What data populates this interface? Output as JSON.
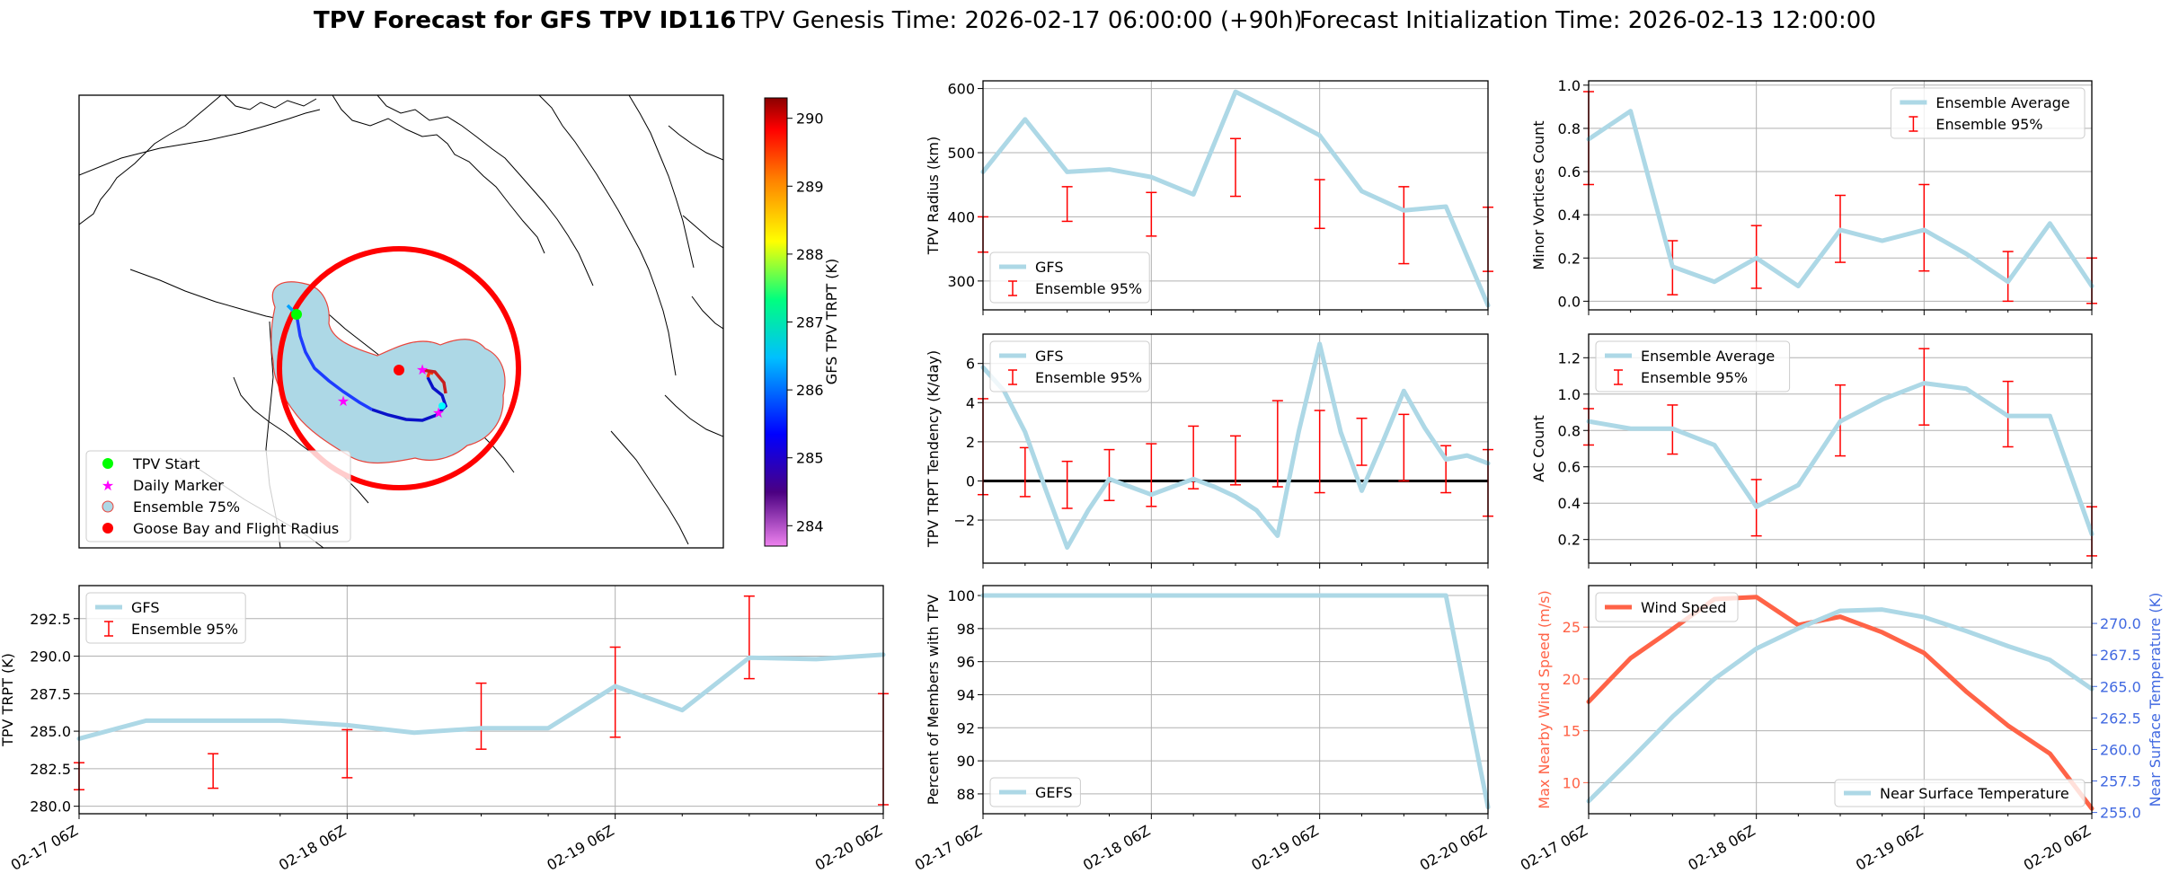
{
  "header": {
    "title_bold": "TPV Forecast for GFS TPV ID116",
    "genesis": "TPV Genesis Time: 2026-02-17 06:00:00 (+90h)",
    "init": "Forecast Initialization Time: 2026-02-13 12:00:00"
  },
  "colors": {
    "series": "#add8e6",
    "err": "#ff0000",
    "wind": "#ff6347",
    "temp": "#4169e1"
  },
  "time_ticks": [
    "02-17 06Z",
    "02-18 06Z",
    "02-19 06Z",
    "02-20 06Z"
  ],
  "map": {
    "legend": [
      {
        "label": "TPV Start",
        "symbol": "green-dot"
      },
      {
        "label": "Daily Marker",
        "symbol": "magenta-star"
      },
      {
        "label": "Ensemble 75%",
        "symbol": "lightblue-circle"
      },
      {
        "label": "Goose Bay and Flight Radius",
        "symbol": "red-dot"
      }
    ],
    "colorbar": {
      "label": "GFS TPV TRPT (K)",
      "ticks": [
        "284",
        "285",
        "286",
        "287",
        "288",
        "289",
        "290"
      ],
      "range": [
        283.7,
        290.3
      ]
    }
  },
  "chart_data": [
    {
      "id": "radius",
      "type": "line",
      "title": "",
      "xlabel": "",
      "ylabel": "TPV Radius (km)",
      "ylim": [
        255,
        612
      ],
      "yticks": [
        300,
        400,
        500,
        600
      ],
      "ytick_labels": [
        "300",
        "400",
        "500",
        "600"
      ],
      "legend": [
        "GFS",
        "Ensemble 95%"
      ],
      "legend_loc": "lower-left",
      "x": [
        0,
        1,
        2,
        3,
        4,
        5,
        6,
        7,
        8,
        9,
        10,
        11,
        12
      ],
      "series": [
        {
          "name": "GFS",
          "values": [
            470,
            552,
            470,
            474,
            462,
            435,
            595,
            562,
            527,
            440,
            410,
            416,
            262
          ]
        }
      ],
      "errorbars": [
        {
          "x": 0,
          "lo": 345,
          "hi": 400
        },
        {
          "x": 2,
          "lo": 393,
          "hi": 447
        },
        {
          "x": 4,
          "lo": 370,
          "hi": 438
        },
        {
          "x": 6,
          "lo": 432,
          "hi": 522
        },
        {
          "x": 8,
          "lo": 382,
          "hi": 458
        },
        {
          "x": 10,
          "lo": 327,
          "hi": 447
        },
        {
          "x": 12,
          "lo": 315,
          "hi": 415
        }
      ]
    },
    {
      "id": "minor",
      "type": "line",
      "title": "",
      "xlabel": "",
      "ylabel": "Minor Vortices Count",
      "ylim": [
        -0.04,
        1.02
      ],
      "yticks": [
        0,
        0.2,
        0.4,
        0.6,
        0.8,
        1.0
      ],
      "ytick_labels": [
        "0.0",
        "0.2",
        "0.4",
        "0.6",
        "0.8",
        "1.0"
      ],
      "legend": [
        "Ensemble Average",
        "Ensemble 95%"
      ],
      "legend_loc": "upper-right",
      "x": [
        0,
        1,
        2,
        3,
        4,
        5,
        6,
        7,
        8,
        9,
        10,
        11,
        12
      ],
      "series": [
        {
          "name": "Ensemble Average",
          "values": [
            0.75,
            0.88,
            0.16,
            0.09,
            0.2,
            0.07,
            0.33,
            0.28,
            0.33,
            0.22,
            0.09,
            0.36,
            0.07
          ]
        }
      ],
      "errorbars": [
        {
          "x": 0,
          "lo": 0.54,
          "hi": 0.97
        },
        {
          "x": 2,
          "lo": 0.03,
          "hi": 0.28
        },
        {
          "x": 4,
          "lo": 0.06,
          "hi": 0.35
        },
        {
          "x": 6,
          "lo": 0.18,
          "hi": 0.49
        },
        {
          "x": 8,
          "lo": 0.14,
          "hi": 0.54
        },
        {
          "x": 10,
          "lo": 0.0,
          "hi": 0.23
        },
        {
          "x": 12,
          "lo": -0.01,
          "hi": 0.2
        }
      ]
    },
    {
      "id": "tendency",
      "type": "line",
      "title": "",
      "xlabel": "",
      "ylabel": "TPV TRPT Tendency (K/day)",
      "ylim": [
        -4.2,
        7.5
      ],
      "yticks": [
        -2,
        0,
        2,
        4,
        6
      ],
      "ytick_labels": [
        "−2",
        "0",
        "2",
        "4",
        "6"
      ],
      "zero_line": true,
      "legend": [
        "GFS",
        "Ensemble 95%"
      ],
      "legend_loc": "upper-left",
      "x": [
        0,
        1,
        2,
        3,
        4,
        5,
        6,
        7,
        8,
        9,
        10,
        11,
        12,
        13,
        14,
        15,
        16,
        17,
        18,
        19,
        20,
        21,
        22,
        23,
        24
      ],
      "series": [
        {
          "name": "GFS",
          "values": [
            5.8,
            4.6,
            2.5,
            -0.5,
            -3.4,
            -1.5,
            0.1,
            -0.3,
            -0.7,
            -0.3,
            0.1,
            -0.3,
            -0.8,
            -1.5,
            -2.8,
            2.5,
            7.0,
            2.5,
            -0.5,
            2.0,
            4.6,
            2.7,
            1.1,
            1.3,
            0.9
          ]
        }
      ],
      "errorbars": [
        {
          "x": 0,
          "lo": -0.7,
          "hi": 4.2
        },
        {
          "x": 2,
          "lo": -0.8,
          "hi": 1.7
        },
        {
          "x": 4,
          "lo": -1.4,
          "hi": 1.0
        },
        {
          "x": 6,
          "lo": -1.0,
          "hi": 1.6
        },
        {
          "x": 8,
          "lo": -1.3,
          "hi": 1.9
        },
        {
          "x": 10,
          "lo": -0.4,
          "hi": 2.8
        },
        {
          "x": 12,
          "lo": -0.2,
          "hi": 2.3
        },
        {
          "x": 14,
          "lo": -0.3,
          "hi": 4.1
        },
        {
          "x": 16,
          "lo": -0.6,
          "hi": 3.6
        },
        {
          "x": 18,
          "lo": 0.8,
          "hi": 3.2
        },
        {
          "x": 20,
          "lo": 0.0,
          "hi": 3.4
        },
        {
          "x": 22,
          "lo": -0.6,
          "hi": 1.8
        },
        {
          "x": 24,
          "lo": -1.8,
          "hi": 1.6
        }
      ]
    },
    {
      "id": "ac",
      "type": "line",
      "title": "",
      "xlabel": "",
      "ylabel": "AC Count",
      "ylim": [
        0.07,
        1.33
      ],
      "yticks": [
        0.2,
        0.4,
        0.6,
        0.8,
        1.0,
        1.2
      ],
      "ytick_labels": [
        "0.2",
        "0.4",
        "0.6",
        "0.8",
        "1.0",
        "1.2"
      ],
      "legend": [
        "Ensemble Average",
        "Ensemble 95%"
      ],
      "legend_loc": "upper-left",
      "x": [
        0,
        1,
        2,
        3,
        4,
        5,
        6,
        7,
        8,
        9,
        10,
        11,
        12
      ],
      "series": [
        {
          "name": "Ensemble Average",
          "values": [
            0.85,
            0.81,
            0.81,
            0.72,
            0.38,
            0.5,
            0.85,
            0.97,
            1.06,
            1.03,
            0.88,
            0.88,
            0.23
          ]
        }
      ],
      "errorbars": [
        {
          "x": 0,
          "lo": 0.72,
          "hi": 0.92
        },
        {
          "x": 2,
          "lo": 0.67,
          "hi": 0.94
        },
        {
          "x": 4,
          "lo": 0.22,
          "hi": 0.53
        },
        {
          "x": 6,
          "lo": 0.66,
          "hi": 1.05
        },
        {
          "x": 8,
          "lo": 0.83,
          "hi": 1.25
        },
        {
          "x": 10,
          "lo": 0.71,
          "hi": 1.07
        },
        {
          "x": 12,
          "lo": 0.11,
          "hi": 0.38
        }
      ]
    },
    {
      "id": "trpt",
      "type": "line",
      "title": "",
      "xlabel": "",
      "ylabel": "TPV TRPT (K)",
      "ylim": [
        279.5,
        294.7
      ],
      "yticks": [
        280,
        282.5,
        285,
        287.5,
        290,
        292.5
      ],
      "ytick_labels": [
        "280.0",
        "282.5",
        "285.0",
        "287.5",
        "290.0",
        "292.5"
      ],
      "legend": [
        "GFS",
        "Ensemble 95%"
      ],
      "legend_loc": "upper-left",
      "x": [
        0,
        1,
        2,
        3,
        4,
        5,
        6,
        7,
        8,
        9,
        10,
        11,
        12
      ],
      "series": [
        {
          "name": "GFS",
          "values": [
            284.5,
            285.7,
            285.7,
            285.7,
            285.4,
            284.9,
            285.2,
            285.2,
            288.0,
            286.4,
            289.9,
            289.8,
            290.1
          ]
        }
      ],
      "errorbars": [
        {
          "x": 0,
          "lo": 281.1,
          "hi": 282.9
        },
        {
          "x": 2,
          "lo": 281.2,
          "hi": 283.5
        },
        {
          "x": 4,
          "lo": 281.9,
          "hi": 285.1
        },
        {
          "x": 6,
          "lo": 283.8,
          "hi": 288.2
        },
        {
          "x": 8,
          "lo": 284.6,
          "hi": 290.6
        },
        {
          "x": 10,
          "lo": 288.5,
          "hi": 294.0
        },
        {
          "x": 12,
          "lo": 280.1,
          "hi": 287.5
        }
      ]
    },
    {
      "id": "pct",
      "type": "line",
      "title": "",
      "xlabel": "",
      "ylabel": "Percent of Members with TPV",
      "ylim": [
        86.8,
        100.6
      ],
      "yticks": [
        88,
        90,
        92,
        94,
        96,
        98,
        100
      ],
      "ytick_labels": [
        "88",
        "90",
        "92",
        "94",
        "96",
        "98",
        "100"
      ],
      "legend": [
        "GEFS"
      ],
      "legend_loc": "lower-left",
      "x": [
        0,
        1,
        2,
        3,
        4,
        5,
        6,
        7,
        8,
        9,
        10,
        11,
        12
      ],
      "series": [
        {
          "name": "GEFS",
          "values": [
            100,
            100,
            100,
            100,
            100,
            100,
            100,
            100,
            100,
            100,
            100,
            100,
            87.2
          ]
        }
      ]
    },
    {
      "id": "wind",
      "type": "line",
      "title": "",
      "xlabel": "",
      "ylabel": "Max Nearby Wind Speed (m/s)",
      "ylim": [
        7,
        29
      ],
      "yticks": [
        10,
        15,
        20,
        25
      ],
      "ytick_labels": [
        "10",
        "15",
        "20",
        "25"
      ],
      "legend": [
        "Wind Speed"
      ],
      "legend_loc": "upper-left",
      "x": [
        0,
        1,
        2,
        3,
        4,
        5,
        6,
        7,
        8,
        9,
        10,
        11,
        12
      ],
      "series": [
        {
          "name": "Wind Speed",
          "values": [
            17.8,
            22,
            24.8,
            27.7,
            27.9,
            25.2,
            26,
            24.5,
            22.5,
            18.8,
            15.5,
            12.8,
            7.5
          ]
        }
      ],
      "y2": {
        "ylabel": "Near Surface Temperature (K)",
        "ylim": [
          254.9,
          273.0
        ],
        "yticks": [
          255,
          257.5,
          260,
          262.5,
          265,
          267.5,
          270
        ],
        "ytick_labels": [
          "255.0",
          "257.5",
          "260.0",
          "262.5",
          "265.0",
          "267.5",
          "270.0"
        ],
        "legend": [
          "Near Surface Temperature"
        ],
        "legend_loc": "lower-right",
        "series": [
          {
            "name": "Near Surface Temperature",
            "values": [
              255.9,
              259.2,
              262.6,
              265.6,
              268.0,
              269.6,
              271.0,
              271.1,
              270.5,
              269.4,
              268.2,
              267.1,
              264.8
            ]
          }
        ]
      }
    }
  ]
}
